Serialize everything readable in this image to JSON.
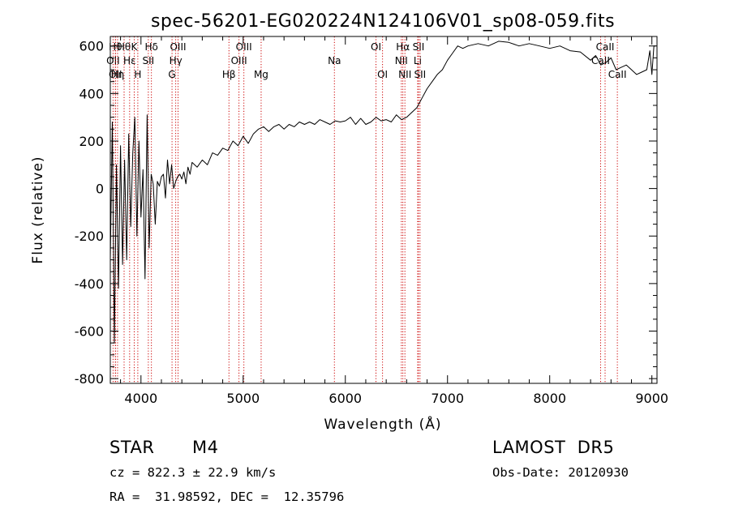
{
  "chart_data": {
    "type": "line",
    "title": "spec-56201-EG020224N124106V01_sp08-059.fits",
    "xlabel": "Wavelength (Å)",
    "ylabel": "Flux (relative)",
    "xlim": [
      3700,
      9050
    ],
    "ylim": [
      -820,
      640
    ],
    "x_ticks": [
      4000,
      5000,
      6000,
      7000,
      8000,
      9000
    ],
    "y_ticks": [
      -800,
      -600,
      -400,
      -200,
      0,
      200,
      400,
      600
    ],
    "grid": false,
    "line_color": "#000000",
    "marker_color": "#cc0000",
    "series": [
      {
        "x": [
          3700,
          3720,
          3740,
          3760,
          3780,
          3800,
          3820,
          3840,
          3860,
          3880,
          3900,
          3920,
          3940,
          3960,
          3980,
          4000,
          4020,
          4040,
          4060,
          4080,
          4100,
          4120,
          4140,
          4160,
          4180,
          4200,
          4220,
          4240,
          4260,
          4280,
          4300,
          4320,
          4340,
          4360,
          4380,
          4400,
          4420,
          4440,
          4460,
          4480,
          4500,
          4550,
          4600,
          4650,
          4700,
          4750,
          4800,
          4850,
          4900,
          4950,
          5000,
          5050,
          5100,
          5150,
          5200,
          5250,
          5300,
          5350,
          5400,
          5450,
          5500,
          5550,
          5600,
          5650,
          5700,
          5750,
          5800,
          5850,
          5900,
          5950,
          6000,
          6050,
          6100,
          6150,
          6200,
          6250,
          6300,
          6350,
          6400,
          6450,
          6500,
          6550,
          6600,
          6650,
          6700,
          6750,
          6800,
          6850,
          6900,
          6950,
          7000,
          7050,
          7100,
          7150,
          7200,
          7300,
          7400,
          7500,
          7600,
          7700,
          7800,
          7900,
          8000,
          8100,
          8200,
          8300,
          8400,
          8450,
          8500,
          8550,
          8600,
          8650,
          8700,
          8750,
          8800,
          8850,
          8900,
          8950,
          8980,
          9000,
          9020,
          9040
        ],
        "y": [
          -300,
          280,
          -650,
          100,
          -420,
          180,
          -320,
          120,
          -300,
          230,
          -160,
          150,
          300,
          -200,
          200,
          -120,
          80,
          -380,
          310,
          -250,
          60,
          20,
          -150,
          30,
          10,
          50,
          60,
          -40,
          120,
          20,
          100,
          0,
          30,
          50,
          60,
          40,
          70,
          20,
          90,
          60,
          110,
          90,
          120,
          100,
          150,
          140,
          170,
          160,
          200,
          180,
          220,
          190,
          230,
          250,
          260,
          240,
          260,
          270,
          250,
          270,
          260,
          280,
          270,
          280,
          270,
          290,
          280,
          270,
          285,
          280,
          285,
          300,
          270,
          295,
          270,
          280,
          300,
          285,
          290,
          280,
          310,
          290,
          300,
          320,
          340,
          380,
          420,
          450,
          480,
          500,
          540,
          570,
          600,
          590,
          600,
          610,
          600,
          620,
          615,
          600,
          610,
          600,
          590,
          600,
          580,
          575,
          540,
          560,
          520,
          530,
          550,
          500,
          510,
          520,
          500,
          480,
          490,
          500,
          580,
          480,
          600,
          600
        ]
      }
    ],
    "line_markers": [
      {
        "x": 3727,
        "label": "OII",
        "row": 1
      },
      {
        "x": 3750,
        "label": "Hθ",
        "row": 0
      },
      {
        "x": 3750,
        "label": "OII",
        "row": 2
      },
      {
        "x": 3771,
        "label": "Hη",
        "row": 2
      },
      {
        "x": 3835,
        "label": "Hθ",
        "row": 0
      },
      {
        "x": 3889,
        "label": "Hε",
        "row": 1
      },
      {
        "x": 3934,
        "label": "K",
        "row": 0
      },
      {
        "x": 3969,
        "label": "H",
        "row": 2
      },
      {
        "x": 4072,
        "label": "SII",
        "row": 1
      },
      {
        "x": 4102,
        "label": "Hδ",
        "row": 0
      },
      {
        "x": 4304,
        "label": "G",
        "row": 2
      },
      {
        "x": 4340,
        "label": "Hγ",
        "row": 1
      },
      {
        "x": 4363,
        "label": "OIII",
        "row": 0
      },
      {
        "x": 4861,
        "label": "Hβ",
        "row": 2
      },
      {
        "x": 4959,
        "label": "OIII",
        "row": 1
      },
      {
        "x": 5007,
        "label": "OIII",
        "row": 0
      },
      {
        "x": 5176,
        "label": "Mg",
        "row": 2
      },
      {
        "x": 5893,
        "label": "Na",
        "row": 1
      },
      {
        "x": 6300,
        "label": "OI",
        "row": 0
      },
      {
        "x": 6364,
        "label": "OI",
        "row": 2
      },
      {
        "x": 6548,
        "label": "NII",
        "row": 1
      },
      {
        "x": 6563,
        "label": "Hα",
        "row": 0
      },
      {
        "x": 6583,
        "label": "NII",
        "row": 2
      },
      {
        "x": 6708,
        "label": "Li",
        "row": 1
      },
      {
        "x": 6716,
        "label": "SII",
        "row": 0
      },
      {
        "x": 6731,
        "label": "SII",
        "row": 2
      },
      {
        "x": 8498,
        "label": "CaII",
        "row": 1
      },
      {
        "x": 8542,
        "label": "CaII",
        "row": 0
      },
      {
        "x": 8662,
        "label": "CaII",
        "row": 2
      }
    ]
  },
  "info": {
    "object_type": "STAR",
    "subclass": "M4",
    "survey": "LAMOST  DR5",
    "velocity": "cz = 822.3 ± 22.9 km/s",
    "obs_date": "Obs-Date: 20120930",
    "coords": "RA =  31.98592, DEC =  12.35796"
  }
}
